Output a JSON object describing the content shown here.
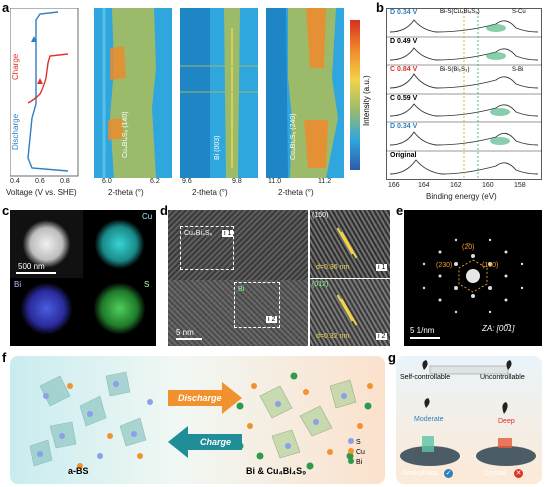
{
  "panels": {
    "a": {
      "label": "a",
      "charge_label": "Charge",
      "discharge_label": "Discharge",
      "voltage_ticks": [
        "0.4",
        "0.6",
        "0.8"
      ],
      "voltage_axis": "Voltage (V vs. SHE)",
      "maps": [
        {
          "peak": "Cu₄Bi₄S₉ (140)",
          "ticks": [
            "6.0",
            "6.2"
          ],
          "xlabel": "2-theta (°)"
        },
        {
          "peak": "Bi (003)",
          "ticks": [
            "9.6",
            "9.8"
          ],
          "xlabel": "2-theta (°)"
        },
        {
          "peak": "Cu₄Bi₄S₉ (240)",
          "ticks": [
            "11.0",
            "11.2"
          ],
          "xlabel": "2-theta (°)"
        }
      ],
      "colorbar_label": "Intensity (a.u.)"
    },
    "b": {
      "label": "b",
      "rows": [
        "D 0.34 V",
        "D 0.49 V",
        "C 0.84 V",
        "C 0.59 V",
        "D 0.34 V",
        "Original"
      ],
      "legend": [
        "Bi-S(Cu₄Bi₄S₉)",
        "S-Cu",
        "Bi-S(Bi₂S₃)",
        "S-Bi"
      ],
      "ticks": [
        "166",
        "164",
        "162",
        "160",
        "158"
      ],
      "xlabel": "Binding energy (eV)"
    },
    "c": {
      "label": "c",
      "elements": [
        "Cu",
        "Bi",
        "S"
      ],
      "scale": "500 nm"
    },
    "d": {
      "label": "d",
      "box1": "i 1",
      "box2": "i 2",
      "phase": "Cu₄Bi₄S₉",
      "bi": "Bi",
      "scale": "5 nm",
      "inset1_plane": "(150)",
      "inset1_d": "d=0.36 nm",
      "inset2_plane": "(012)",
      "inset2_d": "d=0.32 nm"
    },
    "e": {
      "label": "e",
      "spots": [
        "(2̅0)",
        "(230)",
        "(150)"
      ],
      "za": "ZA: [00̅1]",
      "scale": "5 1/nm"
    },
    "f": {
      "label": "f",
      "discharge": "Discharge",
      "charge": "Charge",
      "left_name": "a-BS",
      "right_name": "Bi & Cu₄Bi₄S₉",
      "legend": [
        "S",
        "Cu",
        "Bi"
      ]
    },
    "g": {
      "label": "g",
      "self": "Self-controllable",
      "unc": "Uncontrollable",
      "moderate": "Moderate",
      "deep": "Deep",
      "amorphous": "Amorphous",
      "crystal": "Crystal"
    }
  },
  "colors": {
    "charge": "#e0302a",
    "discharge": "#2f7fc1",
    "map_bg": "#2fa6dd",
    "map_mid": "#9bbb6b",
    "map_hot": "#f08a2a",
    "arrow_orange": "#f2922e",
    "arrow_teal": "#1f8e99"
  }
}
